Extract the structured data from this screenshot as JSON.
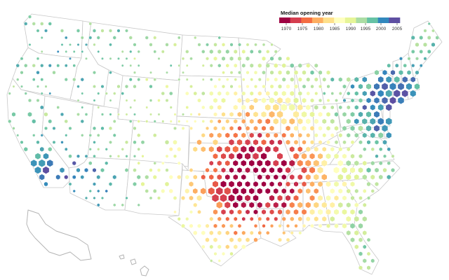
{
  "legend": {
    "title": "Median opening year",
    "ticks": [
      "1970",
      "1975",
      "1980",
      "1985",
      "1990",
      "1995",
      "2000",
      "2005"
    ],
    "colors": [
      "#9e0142",
      "#d53e4f",
      "#f46d43",
      "#fdae61",
      "#fee08b",
      "#ffffbf",
      "#e6f598",
      "#abdda4",
      "#66c2a5",
      "#3288bd",
      "#5e4fa2"
    ]
  },
  "map": {
    "subject": "contiguous-united-states",
    "encoding": "hexbin: size = store count, color = median opening year"
  }
}
